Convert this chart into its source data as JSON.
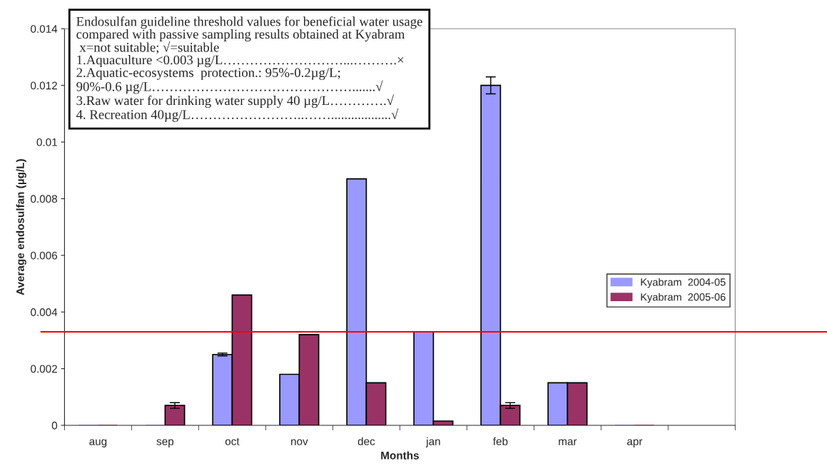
{
  "chart_data": {
    "type": "bar",
    "xlabel": "Months",
    "ylabel": "Average endosulfan (µg/L)",
    "categories": [
      "aug",
      "sep",
      "oct",
      "nov",
      "dec",
      "jan",
      "feb",
      "mar",
      "apr",
      null
    ],
    "series": [
      {
        "name": "Kyabram  2004-05",
        "color": "#9999ff",
        "values": [
          0,
          0,
          0.0025,
          0.0018,
          0.0087,
          0.0033,
          0.012,
          0.0015,
          0,
          null
        ],
        "errors": [
          null,
          null,
          5e-05,
          null,
          null,
          null,
          0.0003,
          null,
          null,
          null
        ]
      },
      {
        "name": "Kyabram  2005-06",
        "color": "#993366",
        "values": [
          0,
          0.0007,
          0.0046,
          0.0032,
          0.0015,
          0.00015,
          0.0007,
          0.0015,
          0,
          null
        ],
        "errors": [
          null,
          0.0001,
          null,
          null,
          null,
          null,
          0.0001,
          null,
          null,
          null
        ]
      }
    ],
    "ylim": [
      0,
      0.014
    ],
    "yticks": [
      0,
      0.002,
      0.004,
      0.006,
      0.008,
      0.01,
      0.012,
      0.014
    ],
    "ref_lines": [
      {
        "axis": "y",
        "value": 0.0033,
        "color": "#ff0000"
      }
    ],
    "annotations": [
      "Endosulfan guideline threshold values for beneficial water usage\ncompared with passive sampling results obtained at Kyabram\n x=not suitable; √=suitable\n1.Aquaculture <0.003 µg/L………………………...……….×\n2.Aquatic-ecosystems  protection.: 95%-0.2µg/L;\n90%-0.6 µg/L……………………………………….......√\n3.Raw water for drinking water supply 40 µg/L………….√\n4. Recreation 40µg/L……………………..……..................√"
    ],
    "legend": "right",
    "grid": false
  }
}
